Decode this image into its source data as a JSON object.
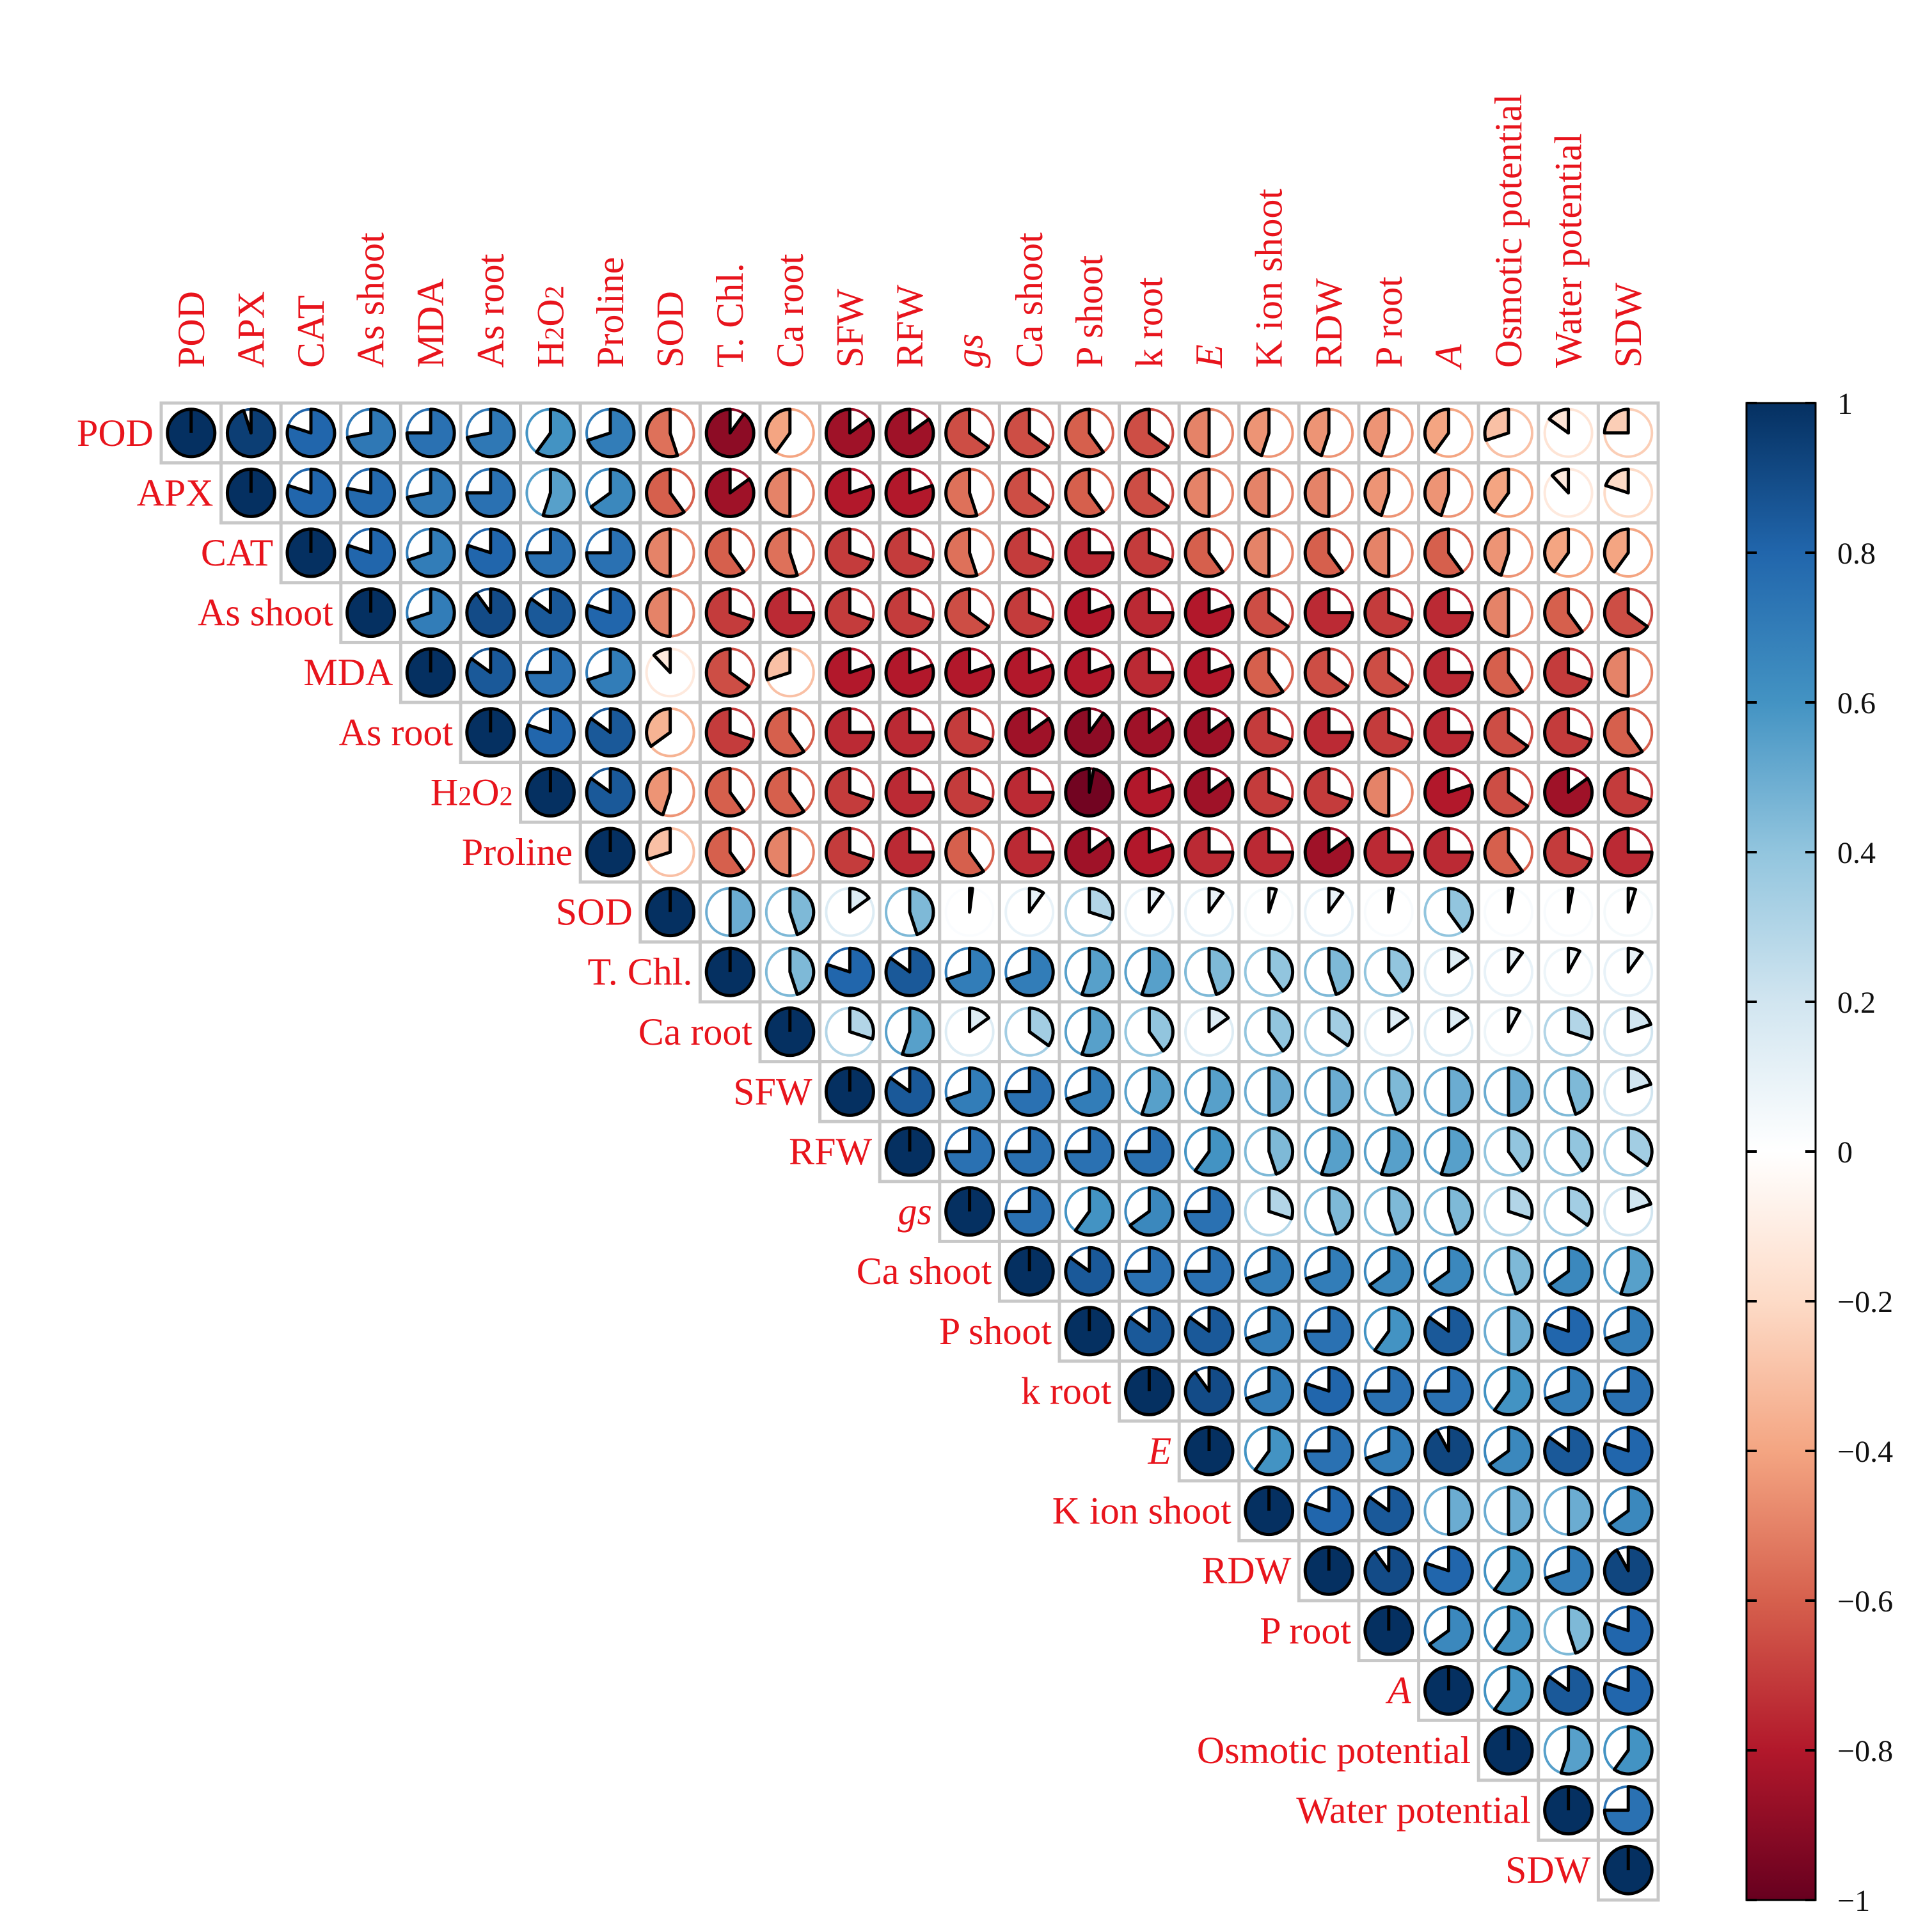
{
  "chart_data": {
    "type": "heatmap",
    "variables": [
      "POD",
      "APX",
      "CAT",
      "As shoot",
      "MDA",
      "As root",
      "H2O2",
      "Proline",
      "SOD",
      "T. Chl.",
      "Ca root",
      "SFW",
      "RFW",
      "gs",
      "Ca shoot",
      "P shoot",
      "k root",
      "E",
      "K ion shoot",
      "RDW",
      "P root",
      "A",
      "Osmotic potential",
      "Water potential",
      "SDW"
    ],
    "italic_variables": [
      "gs",
      "E",
      "A"
    ],
    "h2o2_label": {
      "base": "H",
      "sub1": "2",
      "mid": "O",
      "sub2": "2"
    },
    "matrix": [
      [
        1,
        0.95,
        0.8,
        0.72,
        0.75,
        0.72,
        0.6,
        0.7,
        -0.55,
        -0.9,
        -0.4,
        -0.85,
        -0.85,
        -0.65,
        -0.65,
        -0.6,
        -0.65,
        -0.5,
        -0.45,
        -0.45,
        -0.45,
        -0.4,
        -0.3,
        -0.15,
        -0.25
      ],
      [
        0.95,
        1,
        0.8,
        0.78,
        0.72,
        0.75,
        0.55,
        0.65,
        -0.6,
        -0.85,
        -0.5,
        -0.8,
        -0.8,
        -0.55,
        -0.65,
        -0.6,
        -0.65,
        -0.5,
        -0.5,
        -0.5,
        -0.45,
        -0.45,
        -0.4,
        -0.12,
        -0.2
      ],
      [
        0.8,
        0.8,
        1,
        0.8,
        0.7,
        0.8,
        0.75,
        0.75,
        -0.5,
        -0.6,
        -0.55,
        -0.7,
        -0.7,
        -0.55,
        -0.7,
        -0.75,
        -0.7,
        -0.6,
        -0.5,
        -0.6,
        -0.5,
        -0.6,
        -0.45,
        -0.4,
        -0.4
      ],
      [
        0.72,
        0.78,
        0.8,
        1,
        0.7,
        0.9,
        0.85,
        0.8,
        -0.5,
        -0.7,
        -0.75,
        -0.7,
        -0.7,
        -0.65,
        -0.7,
        -0.8,
        -0.75,
        -0.8,
        -0.65,
        -0.75,
        -0.7,
        -0.75,
        -0.5,
        -0.6,
        -0.65
      ],
      [
        0.75,
        0.72,
        0.7,
        0.7,
        1,
        0.85,
        0.75,
        0.7,
        -0.12,
        -0.65,
        -0.3,
        -0.8,
        -0.8,
        -0.8,
        -0.8,
        -0.8,
        -0.75,
        -0.8,
        -0.6,
        -0.65,
        -0.65,
        -0.75,
        -0.6,
        -0.7,
        -0.5
      ],
      [
        0.72,
        0.75,
        0.8,
        0.9,
        0.85,
        1,
        0.8,
        0.85,
        -0.35,
        -0.7,
        -0.6,
        -0.75,
        -0.75,
        -0.7,
        -0.85,
        -0.9,
        -0.85,
        -0.85,
        -0.7,
        -0.75,
        -0.7,
        -0.75,
        -0.65,
        -0.7,
        -0.6
      ],
      [
        0.6,
        0.55,
        0.75,
        0.85,
        0.75,
        0.8,
        1,
        0.85,
        -0.45,
        -0.6,
        -0.6,
        -0.7,
        -0.75,
        -0.7,
        -0.75,
        -0.97,
        -0.8,
        -0.85,
        -0.7,
        -0.7,
        -0.5,
        -0.8,
        -0.65,
        -0.85,
        -0.7
      ],
      [
        0.7,
        0.65,
        0.75,
        0.8,
        0.7,
        0.85,
        0.85,
        1,
        -0.3,
        -0.6,
        -0.5,
        -0.7,
        -0.75,
        -0.6,
        -0.75,
        -0.85,
        -0.8,
        -0.75,
        -0.75,
        -0.85,
        -0.75,
        -0.75,
        -0.6,
        -0.7,
        -0.75
      ],
      [
        -0.55,
        -0.6,
        -0.5,
        -0.5,
        -0.12,
        -0.35,
        -0.45,
        -0.3,
        1,
        0.5,
        0.45,
        0.15,
        0.45,
        0.02,
        0.1,
        0.3,
        0.1,
        0.1,
        0.05,
        0.1,
        0.03,
        0.4,
        0.03,
        0.03,
        0.05
      ],
      [
        -0.9,
        -0.85,
        -0.6,
        -0.7,
        -0.65,
        -0.7,
        -0.6,
        -0.6,
        0.5,
        1,
        0.45,
        0.8,
        0.85,
        0.7,
        0.7,
        0.55,
        0.55,
        0.45,
        0.4,
        0.45,
        0.4,
        0.15,
        0.1,
        0.08,
        0.1
      ],
      [
        -0.4,
        -0.5,
        -0.55,
        -0.75,
        -0.3,
        -0.6,
        -0.6,
        -0.5,
        0.45,
        0.45,
        1,
        0.3,
        0.55,
        0.15,
        0.35,
        0.55,
        0.4,
        0.15,
        0.4,
        0.35,
        0.15,
        0.15,
        0.08,
        0.3,
        0.2
      ],
      [
        -0.85,
        -0.8,
        -0.7,
        -0.7,
        -0.8,
        -0.75,
        -0.7,
        -0.7,
        0.15,
        0.8,
        0.3,
        1,
        0.85,
        0.7,
        0.75,
        0.7,
        0.55,
        0.55,
        0.5,
        0.5,
        0.45,
        0.5,
        0.5,
        0.45,
        0.2
      ],
      [
        -0.85,
        -0.8,
        -0.7,
        -0.7,
        -0.8,
        -0.75,
        -0.75,
        -0.75,
        0.45,
        0.85,
        0.55,
        0.85,
        1,
        0.75,
        0.75,
        0.75,
        0.75,
        0.6,
        0.45,
        0.55,
        0.55,
        0.55,
        0.4,
        0.4,
        0.35
      ],
      [
        -0.65,
        -0.55,
        -0.55,
        -0.65,
        -0.8,
        -0.7,
        -0.7,
        -0.6,
        0.02,
        0.7,
        0.15,
        0.7,
        0.75,
        1,
        0.75,
        0.6,
        0.65,
        0.75,
        0.3,
        0.45,
        0.45,
        0.45,
        0.3,
        0.35,
        0.2
      ],
      [
        -0.65,
        -0.65,
        -0.7,
        -0.7,
        -0.8,
        -0.85,
        -0.75,
        -0.75,
        0.1,
        0.7,
        0.35,
        0.75,
        0.75,
        0.75,
        1,
        0.85,
        0.75,
        0.75,
        0.7,
        0.7,
        0.65,
        0.65,
        0.45,
        0.65,
        0.55
      ],
      [
        -0.6,
        -0.6,
        -0.75,
        -0.8,
        -0.8,
        -0.9,
        -0.97,
        -0.85,
        0.3,
        0.55,
        0.55,
        0.7,
        0.75,
        0.6,
        0.85,
        1,
        0.85,
        0.85,
        0.7,
        0.75,
        0.6,
        0.85,
        0.5,
        0.8,
        0.7
      ],
      [
        -0.65,
        -0.65,
        -0.7,
        -0.75,
        -0.75,
        -0.85,
        -0.8,
        -0.8,
        0.1,
        0.55,
        0.4,
        0.55,
        0.75,
        0.65,
        0.75,
        0.85,
        1,
        0.9,
        0.7,
        0.8,
        0.75,
        0.75,
        0.6,
        0.7,
        0.75
      ],
      [
        -0.5,
        -0.5,
        -0.6,
        -0.8,
        -0.8,
        -0.85,
        -0.85,
        -0.75,
        0.1,
        0.45,
        0.15,
        0.55,
        0.6,
        0.75,
        0.75,
        0.85,
        0.9,
        1,
        0.6,
        0.75,
        0.7,
        0.92,
        0.65,
        0.85,
        0.8
      ],
      [
        -0.45,
        -0.5,
        -0.5,
        -0.65,
        -0.6,
        -0.7,
        -0.7,
        -0.75,
        0.05,
        0.4,
        0.4,
        0.5,
        0.45,
        0.3,
        0.7,
        0.7,
        0.7,
        0.6,
        1,
        0.8,
        0.85,
        0.5,
        0.5,
        0.5,
        0.65
      ],
      [
        -0.45,
        -0.5,
        -0.6,
        -0.75,
        -0.65,
        -0.75,
        -0.7,
        -0.85,
        0.1,
        0.45,
        0.35,
        0.5,
        0.55,
        0.45,
        0.7,
        0.75,
        0.8,
        0.75,
        0.8,
        1,
        0.9,
        0.8,
        0.6,
        0.7,
        0.92
      ],
      [
        -0.45,
        -0.45,
        -0.5,
        -0.7,
        -0.65,
        -0.7,
        -0.5,
        -0.75,
        0.03,
        0.4,
        0.15,
        0.45,
        0.55,
        0.45,
        0.65,
        0.6,
        0.75,
        0.7,
        0.85,
        0.9,
        1,
        0.65,
        0.6,
        0.45,
        0.8
      ],
      [
        -0.4,
        -0.45,
        -0.6,
        -0.75,
        -0.75,
        -0.75,
        -0.8,
        -0.75,
        0.4,
        0.15,
        0.15,
        0.5,
        0.55,
        0.45,
        0.65,
        0.85,
        0.75,
        0.92,
        0.5,
        0.8,
        0.65,
        1,
        0.6,
        0.85,
        0.8
      ],
      [
        -0.3,
        -0.4,
        -0.45,
        -0.5,
        -0.6,
        -0.65,
        -0.65,
        -0.6,
        0.03,
        0.1,
        0.08,
        0.5,
        0.4,
        0.3,
        0.45,
        0.5,
        0.6,
        0.65,
        0.5,
        0.6,
        0.6,
        0.6,
        1,
        0.55,
        0.6
      ],
      [
        -0.15,
        -0.12,
        -0.4,
        -0.6,
        -0.7,
        -0.7,
        -0.85,
        -0.7,
        0.03,
        0.08,
        0.3,
        0.45,
        0.4,
        0.35,
        0.65,
        0.8,
        0.7,
        0.85,
        0.5,
        0.7,
        0.45,
        0.85,
        0.55,
        1,
        0.75
      ],
      [
        -0.25,
        -0.2,
        -0.4,
        -0.65,
        -0.5,
        -0.6,
        -0.7,
        -0.75,
        0.05,
        0.1,
        0.2,
        0.2,
        0.35,
        0.2,
        0.55,
        0.7,
        0.75,
        0.8,
        0.65,
        0.92,
        0.8,
        0.8,
        0.6,
        0.75,
        1
      ]
    ],
    "colorbar": {
      "range": [
        -1,
        1
      ],
      "ticks": [
        1,
        0.8,
        0.6,
        0.4,
        0.2,
        0,
        -0.2,
        -0.4,
        -0.6,
        -0.8,
        -1
      ],
      "tick_labels": [
        "1",
        "0.8",
        "0.6",
        "0.4",
        "0.2",
        "0",
        "−0.2",
        "−0.4",
        "−0.6",
        "−0.8",
        "−1"
      ],
      "colors": [
        "#67001f",
        "#b2182b",
        "#d6604d",
        "#f4a582",
        "#fddbc7",
        "#ffffff",
        "#d1e5f0",
        "#92c5de",
        "#4393c3",
        "#2166ac",
        "#053061"
      ]
    },
    "label_color": "#e8141c",
    "grid_color": "#c8c8c8"
  }
}
